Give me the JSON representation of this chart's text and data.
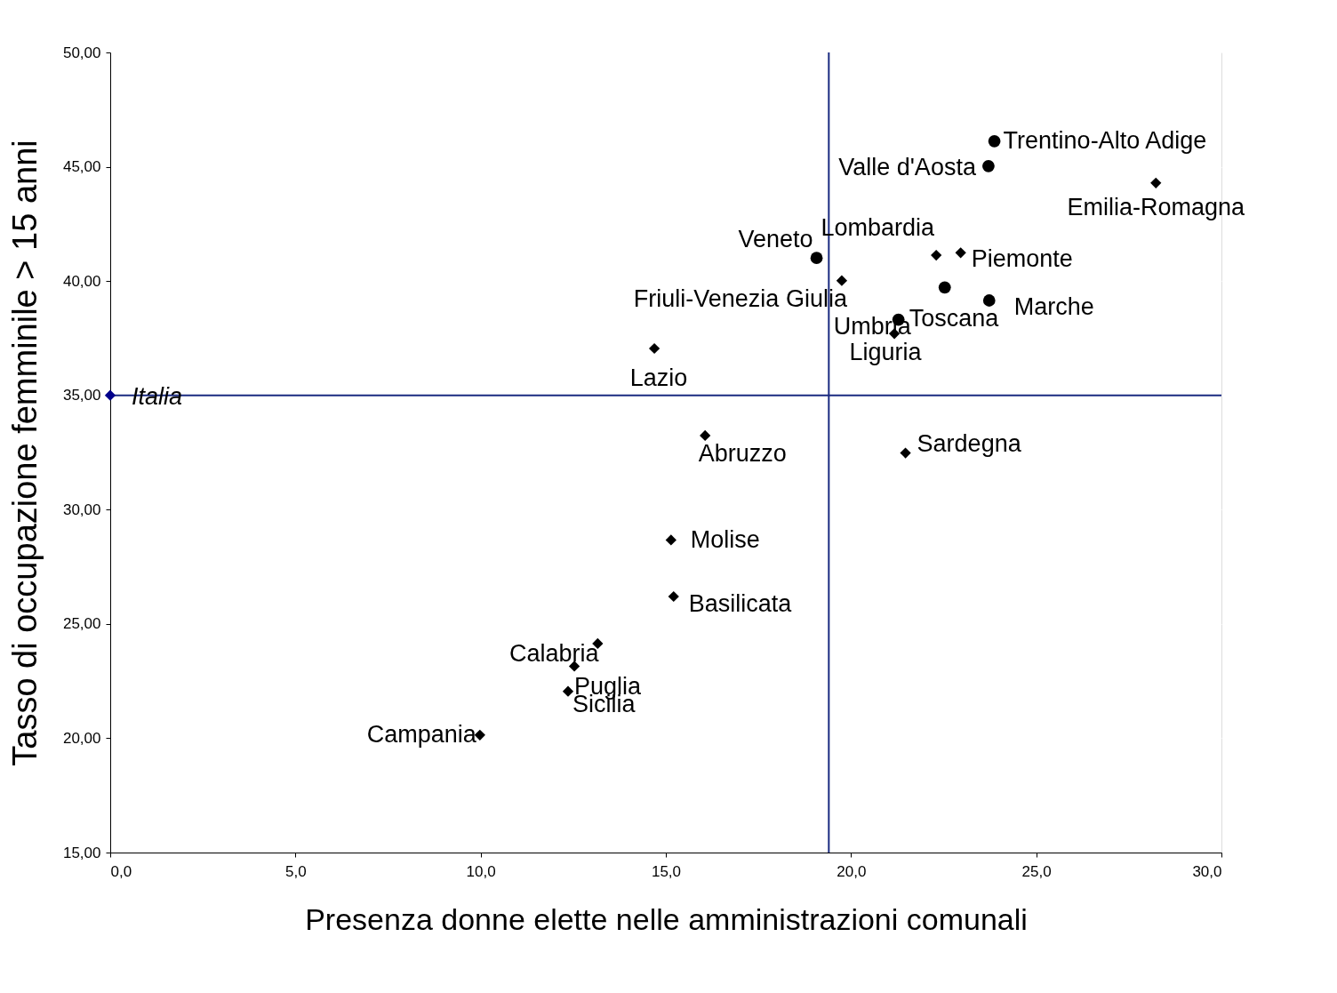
{
  "chart_data": {
    "type": "scatter",
    "xlabel": "Presenza donne elette nelle amministrazioni comunali",
    "ylabel": "Tasso di occupazione femminile > 15 anni",
    "xlim": [
      0,
      30
    ],
    "ylim": [
      15,
      50
    ],
    "xticks": [
      {
        "value": 0,
        "label": "0,0"
      },
      {
        "value": 5,
        "label": "5,0"
      },
      {
        "value": 10,
        "label": "10,0"
      },
      {
        "value": 15,
        "label": "15,0"
      },
      {
        "value": 20,
        "label": "20,0"
      },
      {
        "value": 25,
        "label": "25,0"
      },
      {
        "value": 30,
        "label": "30,0"
      }
    ],
    "yticks": [
      {
        "value": 15,
        "label": "15,00"
      },
      {
        "value": 20,
        "label": "20,00"
      },
      {
        "value": 25,
        "label": "25,00"
      },
      {
        "value": 30,
        "label": "30,00"
      },
      {
        "value": 35,
        "label": "35,00"
      },
      {
        "value": 40,
        "label": "40,00"
      },
      {
        "value": 45,
        "label": "45,00"
      },
      {
        "value": 50,
        "label": "50,00"
      }
    ],
    "grid": "y",
    "series": [
      {
        "color": "#000000",
        "marker": "circle",
        "x": [
          23.87,
          23.71,
          19.07,
          22.53,
          23.73,
          21.28
        ],
        "values": [
          46.12,
          45.03,
          41.01,
          39.72,
          39.15,
          38.31
        ]
      },
      {
        "color": "#000000",
        "marker": "diamond",
        "x": [
          28.23,
          22.3,
          22.96,
          19.75,
          21.17,
          14.69,
          16.06,
          21.47,
          15.14,
          15.21,
          13.16,
          12.53,
          12.36,
          9.98
        ],
        "values": [
          44.29,
          41.13,
          41.24,
          40.02,
          37.7,
          37.05,
          33.24,
          32.48,
          28.67,
          26.2,
          24.14,
          23.15,
          22.05,
          20.14
        ]
      },
      {
        "name": "Italia",
        "color": "#00008b",
        "marker": "diamond",
        "x": [
          0
        ],
        "values": [
          35
        ]
      }
    ],
    "ref_lines": [
      {
        "axis": "x",
        "value": 19.4,
        "color": "#1a2a80"
      },
      {
        "axis": "y",
        "value": 35,
        "color": "#1a2a80"
      }
    ],
    "annotations": [
      {
        "text": "Trentino-Alto Adige",
        "x": 23.87,
        "y": 46.12
      },
      {
        "text": "Valle d'Aosta",
        "x": 23.71,
        "y": 45.03
      },
      {
        "text": "Emilia-Romagna",
        "x": 28.23,
        "y": 44.29
      },
      {
        "text": "Veneto",
        "x": 19.07,
        "y": 41.01
      },
      {
        "text": "Lombardia",
        "x": 22.3,
        "y": 41.13
      },
      {
        "text": "Piemonte",
        "x": 22.96,
        "y": 41.24
      },
      {
        "text": "Friuli-Venezia Giulia",
        "x": 19.75,
        "y": 40.02
      },
      {
        "text": "Toscana",
        "x": 22.53,
        "y": 39.72
      },
      {
        "text": "Marche",
        "x": 23.73,
        "y": 39.15
      },
      {
        "text": "Umbria",
        "x": 21.28,
        "y": 38.31
      },
      {
        "text": "Liguria",
        "x": 21.17,
        "y": 37.7
      },
      {
        "text": "Lazio",
        "x": 14.69,
        "y": 37.05
      },
      {
        "text": "Abruzzo",
        "x": 16.06,
        "y": 33.24
      },
      {
        "text": "Sardegna",
        "x": 21.47,
        "y": 32.48
      },
      {
        "text": "Molise",
        "x": 15.14,
        "y": 28.67
      },
      {
        "text": "Basilicata",
        "x": 15.21,
        "y": 26.2
      },
      {
        "text": "Calabria",
        "x": 13.16,
        "y": 24.14
      },
      {
        "text": "Puglia",
        "x": 12.53,
        "y": 23.15
      },
      {
        "text": "Sicilia",
        "x": 12.36,
        "y": 22.05
      },
      {
        "text": "Campania",
        "x": 9.98,
        "y": 20.14
      }
    ]
  }
}
